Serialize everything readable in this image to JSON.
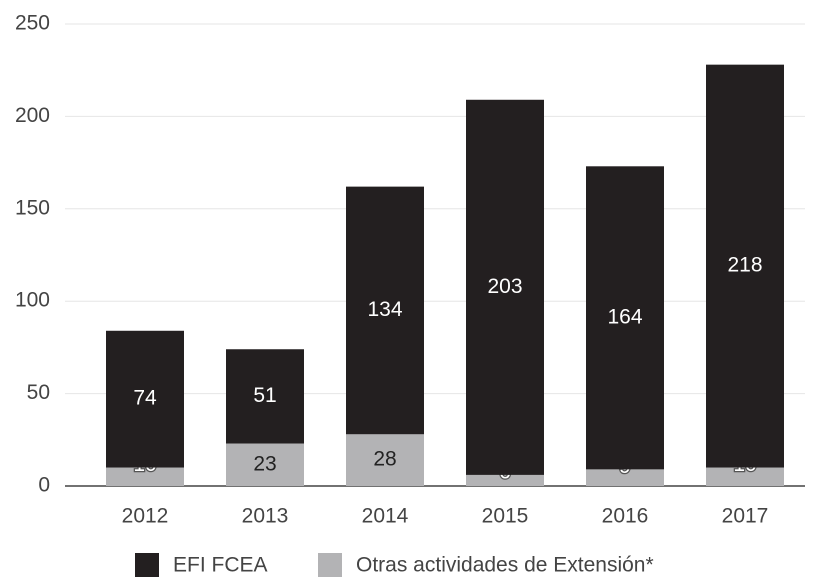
{
  "chart_data": {
    "type": "stacked_bar",
    "categories": [
      "2012",
      "2013",
      "2014",
      "2015",
      "2016",
      "2017"
    ],
    "series": [
      {
        "name": "EFI FCEA",
        "color": "#231f20",
        "values": [
          74,
          51,
          134,
          203,
          164,
          218
        ]
      },
      {
        "name": "Otras actividades de Extensión*",
        "color": "#b3b3b5",
        "values": [
          10,
          23,
          28,
          6,
          9,
          10
        ]
      }
    ],
    "ylim": [
      0,
      250
    ],
    "yticks": [
      0,
      50,
      100,
      150,
      200,
      250
    ],
    "grid": true,
    "legend": "bottom"
  }
}
